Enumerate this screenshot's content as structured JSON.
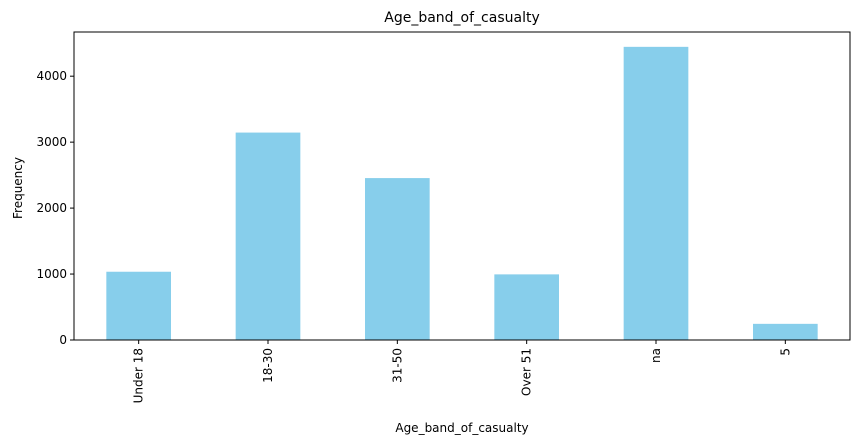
{
  "chart_data": {
    "type": "bar",
    "title": "Age_band_of_casualty",
    "xlabel": "Age_band_of_casualty",
    "ylabel": "Frequency",
    "categories": [
      "Under 18",
      "18-30",
      "31-50",
      "Over 51",
      "na",
      "5"
    ],
    "values": [
      1035,
      3145,
      2455,
      995,
      4445,
      245
    ],
    "ylim": [
      0,
      4670
    ],
    "yticks": [
      0,
      1000,
      2000,
      3000,
      4000
    ],
    "grid": false,
    "legend": "none",
    "bar_color": "#87ceeb"
  }
}
